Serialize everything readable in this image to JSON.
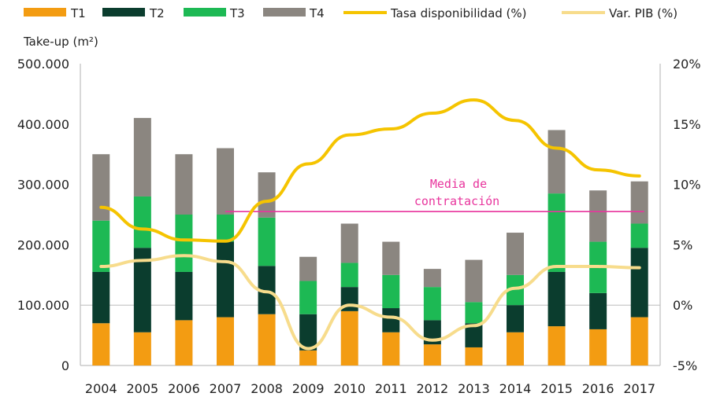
{
  "chart_data": {
    "type": "bar",
    "stacked": true,
    "ylabel": "Take-up (m²)",
    "categories": [
      "2004",
      "2005",
      "2006",
      "2007",
      "2008",
      "2009",
      "2010",
      "2011",
      "2012",
      "2013",
      "2014",
      "2015",
      "2016",
      "2017"
    ],
    "series": [
      {
        "name": "T1",
        "color": "#f39c12",
        "values": [
          70000,
          55000,
          75000,
          80000,
          85000,
          25000,
          90000,
          55000,
          35000,
          30000,
          55000,
          65000,
          60000,
          80000
        ]
      },
      {
        "name": "T2",
        "color": "#0b3d2e",
        "values": [
          85000,
          140000,
          80000,
          125000,
          80000,
          60000,
          40000,
          40000,
          40000,
          40000,
          45000,
          90000,
          60000,
          115000
        ]
      },
      {
        "name": "T3",
        "color": "#1db954",
        "values": [
          85000,
          85000,
          95000,
          45000,
          80000,
          55000,
          40000,
          55000,
          55000,
          35000,
          50000,
          130000,
          85000,
          40000
        ]
      },
      {
        "name": "T4",
        "color": "#8b8680",
        "values": [
          110000,
          130000,
          100000,
          110000,
          75000,
          40000,
          65000,
          55000,
          30000,
          70000,
          70000,
          105000,
          85000,
          70000
        ]
      }
    ],
    "lines": [
      {
        "name": "Tasa disponibilidad (%)",
        "color": "#f5c400",
        "axis": "right",
        "values": [
          8.1,
          6.3,
          5.4,
          5.3,
          8.6,
          11.7,
          14.1,
          14.6,
          15.9,
          17.0,
          15.3,
          13.0,
          11.2,
          10.7
        ]
      },
      {
        "name": "Var. PIB (%)",
        "color": "#f7dc8c",
        "axis": "right",
        "values": [
          3.2,
          3.7,
          4.1,
          3.6,
          1.1,
          -3.6,
          0.0,
          -1.0,
          -2.9,
          -1.7,
          1.4,
          3.2,
          3.2,
          3.1
        ]
      }
    ],
    "reference_line": {
      "label_line1": "Media de",
      "label_line2": "contratación",
      "value": 255000,
      "from": "2007",
      "to": "2017",
      "color": "#e8359d"
    },
    "ylim": [
      0,
      500000
    ],
    "y2lim": [
      -5,
      20
    ],
    "yticks": [
      "0",
      "100.000",
      "200.000",
      "300.000",
      "400.000",
      "500.000"
    ],
    "y2ticks": [
      "-5%",
      "0%",
      "5%",
      "10%",
      "15%",
      "20%"
    ],
    "legend_position": "top",
    "grid": false
  }
}
